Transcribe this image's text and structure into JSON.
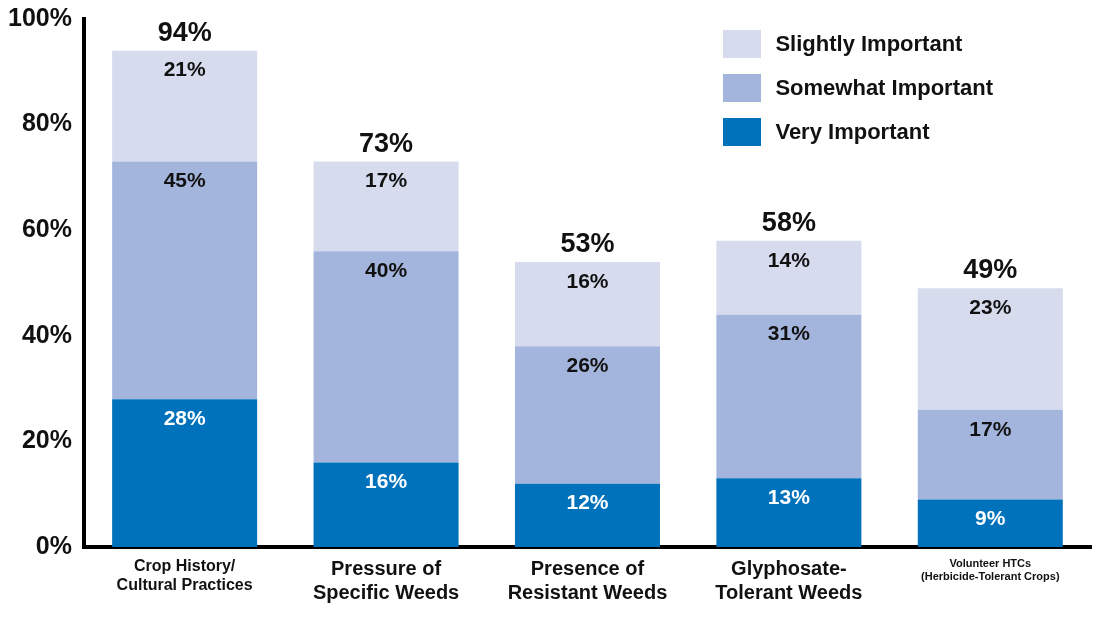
{
  "chart_data": {
    "type": "bar",
    "stacked": true,
    "categories": [
      "Crop History/\nCultural Practices",
      "Pressure of\nSpecific Weeds",
      "Presence of\nResistant Weeds",
      "Glyphosate-\nTolerant Weeds",
      "Volunteer HTCs\n(Herbicide-Tolerant Crops)"
    ],
    "series": [
      {
        "name": "Very Important",
        "color": "#0072bb",
        "values": [
          28,
          16,
          12,
          13,
          9
        ],
        "value_labels": [
          "28%",
          "16%",
          "12%",
          "13%",
          "9%"
        ]
      },
      {
        "name": "Somewhat Important",
        "color": "#a3b5dc",
        "values": [
          45,
          40,
          26,
          31,
          17
        ],
        "value_labels": [
          "45%",
          "40%",
          "26%",
          "31%",
          "17%"
        ]
      },
      {
        "name": "Slightly Important",
        "color": "#d6dcee",
        "values": [
          21,
          17,
          16,
          14,
          23
        ],
        "value_labels": [
          "21%",
          "17%",
          "16%",
          "14%",
          "23%"
        ]
      }
    ],
    "totals": [
      "94%",
      "73%",
      "53%",
      "58%",
      "49%"
    ],
    "ylim": [
      0,
      100
    ],
    "yticks": [
      {
        "value": 0,
        "label": "0%"
      },
      {
        "value": 20,
        "label": "20%"
      },
      {
        "value": 40,
        "label": "40%"
      },
      {
        "value": 60,
        "label": "60%"
      },
      {
        "value": 80,
        "label": "80%"
      },
      {
        "value": 100,
        "label": "100%"
      }
    ],
    "grid": false,
    "legend": "top right"
  }
}
